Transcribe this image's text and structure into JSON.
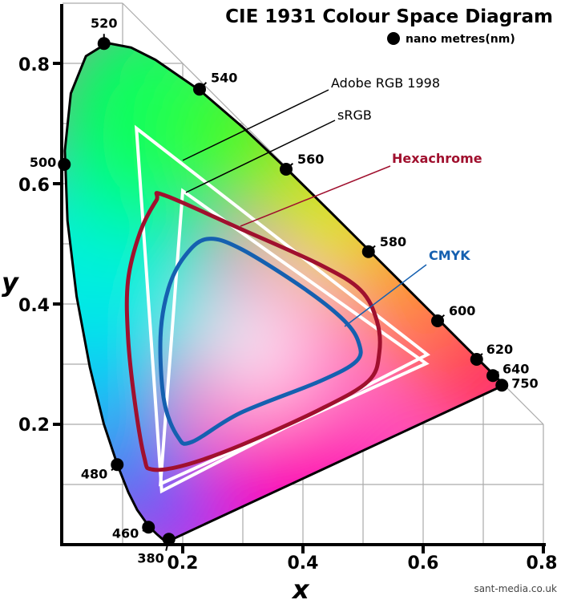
{
  "chart_data": {
    "type": "diagram",
    "title": "CIE 1931 Colour Space Diagram",
    "legend": {
      "marker": "dot",
      "label": "nano metres(nm)",
      "placement": "top-right"
    },
    "xlabel": "x",
    "ylabel": "y",
    "xlim": [
      0,
      0.8
    ],
    "ylim": [
      0,
      0.9
    ],
    "grid": true,
    "x_ticks": [
      "0.2",
      "0.4",
      "0.6",
      "0.8"
    ],
    "x_tick_values": [
      0.2,
      0.4,
      0.6,
      0.8
    ],
    "y_ticks": [
      "0.2",
      "0.4",
      "0.6",
      "0.8"
    ],
    "y_tick_values": [
      0.2,
      0.4,
      0.6,
      0.8
    ],
    "spectral_locus": [
      [
        0.1741,
        0.005
      ],
      [
        0.1714,
        0.0051
      ],
      [
        0.1644,
        0.0109
      ],
      [
        0.1566,
        0.0177
      ],
      [
        0.144,
        0.0297
      ],
      [
        0.1241,
        0.0578
      ],
      [
        0.1096,
        0.0868
      ],
      [
        0.0913,
        0.1327
      ],
      [
        0.0687,
        0.2007
      ],
      [
        0.0454,
        0.295
      ],
      [
        0.0235,
        0.4127
      ],
      [
        0.0082,
        0.5384
      ],
      [
        0.0039,
        0.6548
      ],
      [
        0.0139,
        0.7502
      ],
      [
        0.0389,
        0.812
      ],
      [
        0.0743,
        0.8338
      ],
      [
        0.1142,
        0.8262
      ],
      [
        0.1547,
        0.8059
      ],
      [
        0.2296,
        0.7543
      ],
      [
        0.3016,
        0.6923
      ],
      [
        0.3731,
        0.6245
      ],
      [
        0.4441,
        0.5547
      ],
      [
        0.5125,
        0.4866
      ],
      [
        0.5752,
        0.4242
      ],
      [
        0.627,
        0.3725
      ],
      [
        0.6658,
        0.334
      ],
      [
        0.6915,
        0.3083
      ],
      [
        0.719,
        0.2809
      ],
      [
        0.7347,
        0.2653
      ]
    ],
    "wavelength_markers": [
      {
        "label": "520",
        "x": 0.069,
        "y": 0.833
      },
      {
        "label": "540",
        "x": 0.228,
        "y": 0.757
      },
      {
        "label": "560",
        "x": 0.372,
        "y": 0.624
      },
      {
        "label": "580",
        "x": 0.509,
        "y": 0.487
      },
      {
        "label": "600",
        "x": 0.624,
        "y": 0.372
      },
      {
        "label": "620",
        "x": 0.689,
        "y": 0.308
      },
      {
        "label": "640",
        "x": 0.716,
        "y": 0.281
      },
      {
        "label": "750",
        "x": 0.731,
        "y": 0.265
      },
      {
        "label": "500",
        "x": 0.003,
        "y": 0.632
      },
      {
        "label": "480",
        "x": 0.091,
        "y": 0.133
      },
      {
        "label": "460",
        "x": 0.143,
        "y": 0.029
      },
      {
        "label": "380",
        "x": 0.177,
        "y": 0.009
      }
    ],
    "gamuts": [
      {
        "name": "Adobe RGB 1998",
        "color": "#ffffff",
        "label_color": "#000000",
        "shape": "triangle",
        "points": [
          [
            0.123,
            0.692
          ],
          [
            0.165,
            0.089
          ],
          [
            0.607,
            0.316
          ]
        ]
      },
      {
        "name": "sRGB",
        "color": "#ffffff",
        "label_color": "#000000",
        "shape": "triangle",
        "points": [
          [
            0.2,
            0.588
          ],
          [
            0.163,
            0.101
          ],
          [
            0.605,
            0.301
          ]
        ]
      },
      {
        "name": "Hexachrome",
        "color": "#a0102e",
        "label_color": "#a0102e",
        "shape": "curve",
        "points": [
          [
            0.169,
            0.581
          ],
          [
            0.296,
            0.525
          ],
          [
            0.429,
            0.465
          ],
          [
            0.496,
            0.423
          ],
          [
            0.523,
            0.372
          ],
          [
            0.527,
            0.319
          ],
          [
            0.509,
            0.272
          ],
          [
            0.429,
            0.225
          ],
          [
            0.296,
            0.165
          ],
          [
            0.203,
            0.132
          ],
          [
            0.149,
            0.125
          ],
          [
            0.136,
            0.145
          ],
          [
            0.12,
            0.239
          ],
          [
            0.109,
            0.345
          ],
          [
            0.109,
            0.439
          ],
          [
            0.129,
            0.519
          ],
          [
            0.156,
            0.572
          ]
        ]
      },
      {
        "name": "CMYK",
        "color": "#1560b0",
        "label_color": "#1560b0",
        "shape": "curve",
        "points": [
          [
            0.24,
            0.508
          ],
          [
            0.296,
            0.492
          ],
          [
            0.403,
            0.425
          ],
          [
            0.469,
            0.372
          ],
          [
            0.493,
            0.335
          ],
          [
            0.489,
            0.305
          ],
          [
            0.429,
            0.272
          ],
          [
            0.296,
            0.219
          ],
          [
            0.216,
            0.171
          ],
          [
            0.192,
            0.179
          ],
          [
            0.169,
            0.239
          ],
          [
            0.163,
            0.345
          ],
          [
            0.176,
            0.425
          ],
          [
            0.203,
            0.479
          ]
        ]
      }
    ],
    "credit": "sant-media.co.uk"
  }
}
